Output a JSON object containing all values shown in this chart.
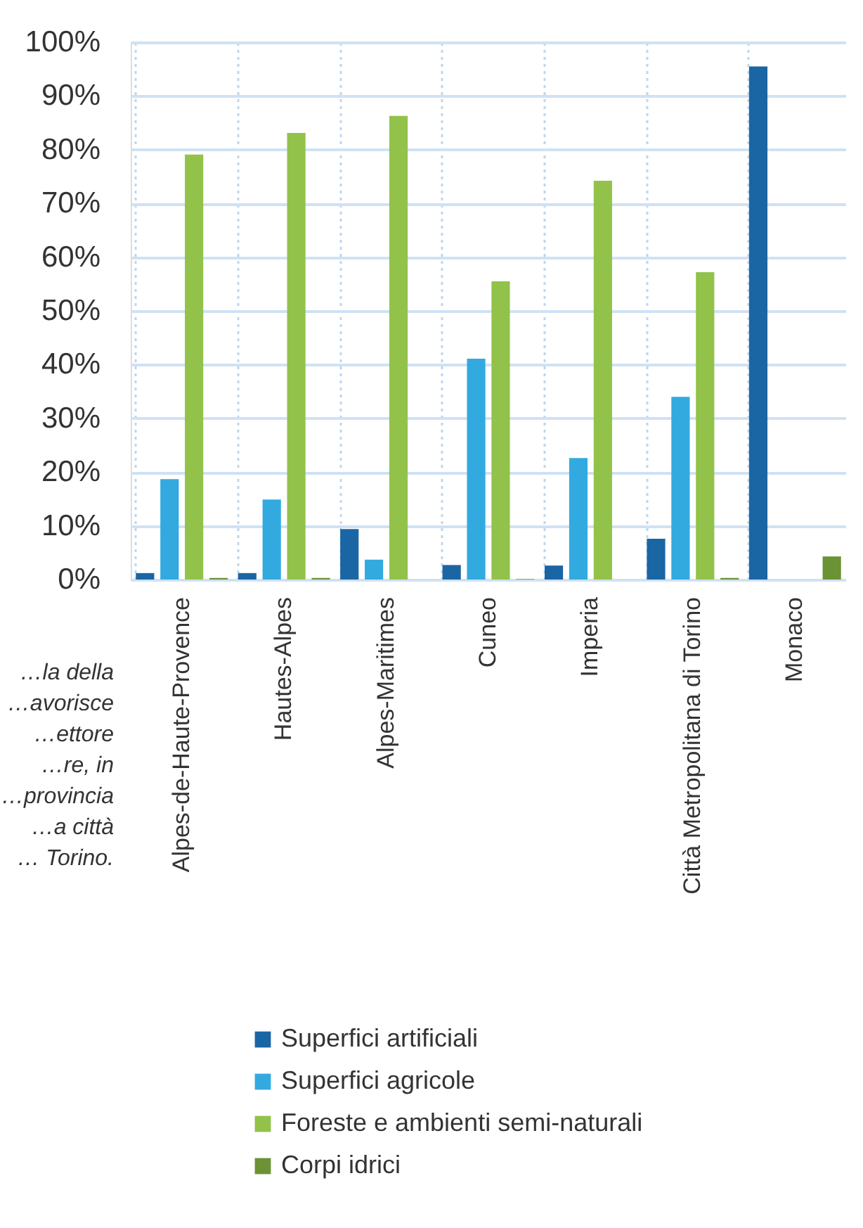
{
  "chart_data": {
    "type": "bar",
    "categories": [
      "Alpes-de-Haute-Provence",
      "Hautes-Alpes",
      "Alpes-Maritimes",
      "Cuneo",
      "Imperia",
      "Città Metropolitana di Torino",
      "Monaco"
    ],
    "series": [
      {
        "name": "Superfici artificiali",
        "color": "#1a65a4",
        "values": [
          1.2,
          1.2,
          9.4,
          2.7,
          2.6,
          7.6,
          95.5
        ]
      },
      {
        "name": "Superfici agricole",
        "color": "#32aae0",
        "values": [
          18.7,
          14.9,
          3.7,
          41.1,
          22.6,
          34.0,
          0
        ]
      },
      {
        "name": "Foreste e ambienti semi-naturali",
        "color": "#92c24a",
        "values": [
          79.1,
          83.1,
          86.3,
          55.5,
          74.2,
          57.2,
          0
        ]
      },
      {
        "name": "Corpi idrici",
        "color": "#6b9235",
        "values": [
          0.3,
          0.3,
          0,
          0.1,
          0,
          0.3,
          4.3
        ]
      }
    ],
    "ylim": [
      0,
      100
    ],
    "yticks": [
      {
        "value": 0,
        "label": "0%"
      },
      {
        "value": 10,
        "label": "10%"
      },
      {
        "value": 20,
        "label": "20%"
      },
      {
        "value": 30,
        "label": "30%"
      },
      {
        "value": 40,
        "label": "40%"
      },
      {
        "value": 50,
        "label": "50%"
      },
      {
        "value": 60,
        "label": "60%"
      },
      {
        "value": 70,
        "label": "70%"
      },
      {
        "value": 80,
        "label": "80%"
      },
      {
        "value": 90,
        "label": "90%"
      },
      {
        "value": 100,
        "label": "100%"
      }
    ],
    "grid": true,
    "legend": "bottom",
    "annotations": [
      "…la della\n…avorisce\n…ettore\n…re, in\n…provincia\n…a città\n… Torino."
    ]
  }
}
